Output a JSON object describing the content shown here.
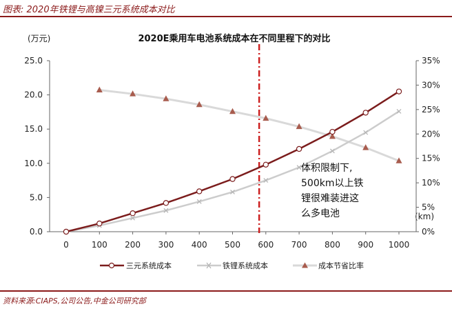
{
  "figure": {
    "title": "图表: 2020年铁锂与高镍三元系统成本对比",
    "source": "资料来源:CIAPS,公司公告,中金公司研究部"
  },
  "colors": {
    "accent": "#8b1a1a",
    "ternary": "#7b1c1c",
    "lfp": "#cccccc",
    "ratio": "#a85c4e",
    "ratio_line": "#d9d9d9",
    "marker_line": "#cc1f1f"
  },
  "chart_data": {
    "type": "line",
    "title": "2020E乘用车电池系统成本在不同里程下的对比",
    "y_unit_label": "(万元)",
    "x_unit_label": "(km)",
    "x": [
      0,
      100,
      200,
      300,
      400,
      500,
      600,
      700,
      800,
      900,
      1000
    ],
    "x_tick_labels": [
      "0",
      "100",
      "200",
      "300",
      "400",
      "500",
      "600",
      "700",
      "800",
      "900",
      "1000"
    ],
    "ylim": [
      0,
      25
    ],
    "y_ticks": [
      "0.0",
      "5.0",
      "10.0",
      "15.0",
      "20.0",
      "25.0"
    ],
    "y2lim": [
      0,
      35
    ],
    "y2_ticks": [
      "0%",
      "5%",
      "10%",
      "15%",
      "20%",
      "25%",
      "30%",
      "35%"
    ],
    "series": [
      {
        "name": "三元系统成本",
        "axis": "left",
        "values": [
          0,
          1.2,
          2.7,
          4.2,
          5.9,
          7.7,
          9.8,
          12.1,
          14.6,
          17.4,
          20.5
        ]
      },
      {
        "name": "铁锂系统成本",
        "axis": "left",
        "values": [
          0,
          0.9,
          2.0,
          3.1,
          4.4,
          5.8,
          7.5,
          9.4,
          11.8,
          14.5,
          17.6
        ]
      },
      {
        "name": "成本节省比率",
        "axis": "right",
        "x": [
          100,
          200,
          300,
          400,
          500,
          600,
          700,
          800,
          900,
          1000
        ],
        "values": [
          29.0,
          28.2,
          27.2,
          26.0,
          24.6,
          23.2,
          21.5,
          19.5,
          17.2,
          14.5
        ]
      }
    ],
    "vertical_marker_x": 580,
    "annotation": [
      "体积限制下,",
      "500km以上铁",
      "锂很难装进这",
      "么多电池"
    ],
    "grid": false,
    "legend_position": "bottom"
  }
}
